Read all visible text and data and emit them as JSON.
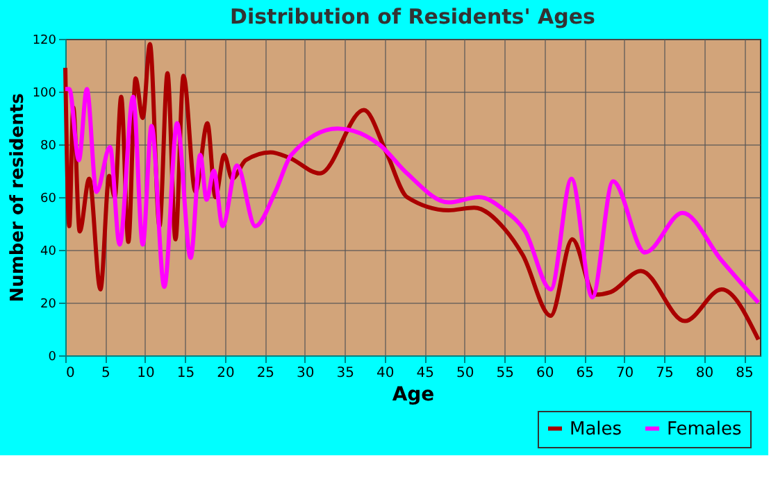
{
  "chart_data": {
    "type": "line",
    "title": "Distribution of Residents' Ages",
    "xlabel": "Age",
    "ylabel": "Number of residents",
    "xlim": [
      0,
      87
    ],
    "xticks": [
      0,
      5,
      10,
      15,
      20,
      25,
      30,
      35,
      40,
      45,
      50,
      55,
      60,
      65,
      70,
      75,
      80,
      85
    ],
    "ylim": [
      0,
      120
    ],
    "yticks": [
      0,
      20,
      40,
      60,
      80,
      100,
      120
    ],
    "grid": true,
    "legend": "bottom right",
    "marker": "none",
    "line_style": "solid",
    "series": [
      {
        "name": "Males",
        "color": "#aa0000",
        "x": [
          0,
          0.5,
          1,
          1.8,
          3,
          4.4,
          5.5,
          6.2,
          7,
          7.9,
          8.8,
          9.7,
          10.6,
          11.8,
          12.8,
          13.8,
          14.8,
          16.3,
          17.8,
          18.8,
          19.9,
          20.9,
          22.6,
          25.7,
          28,
          31.9,
          37.4,
          40.2,
          42.8,
          48,
          51.2,
          55,
          57.3,
          60.8,
          63.5,
          66.3,
          68.3,
          72.1,
          77.6,
          82.2,
          86.8
        ],
        "values": [
          109,
          49,
          94,
          47,
          67,
          25,
          68,
          60,
          98,
          43,
          105,
          90,
          118,
          49,
          107,
          44,
          106,
          62,
          88,
          60,
          76,
          67,
          74,
          77,
          75,
          69,
          93,
          77,
          60,
          55,
          56,
          48,
          38,
          15,
          44,
          23,
          24,
          32,
          13,
          25,
          6
        ]
      },
      {
        "name": "Females",
        "color": "#ff00ff",
        "x": [
          0,
          0.5,
          1.7,
          2.7,
          3.9,
          5.6,
          6.8,
          8.5,
          9.7,
          10.8,
          12.4,
          14,
          15.7,
          16.9,
          17.7,
          18.6,
          19.7,
          21.5,
          23.8,
          26.3,
          28.3,
          34.1,
          39.3,
          42.8,
          48,
          51.8,
          55,
          57.6,
          60.8,
          63.4,
          66,
          68.6,
          72.6,
          77.3,
          82.2,
          86.8
        ],
        "values": [
          101,
          101,
          74,
          101,
          62,
          79,
          42,
          98,
          42,
          87,
          26,
          88,
          37,
          76,
          59,
          70,
          49,
          72,
          49,
          62,
          76,
          86,
          80,
          69,
          58,
          60,
          55,
          47,
          25,
          67,
          22,
          66,
          39,
          54,
          36,
          20
        ]
      }
    ]
  }
}
